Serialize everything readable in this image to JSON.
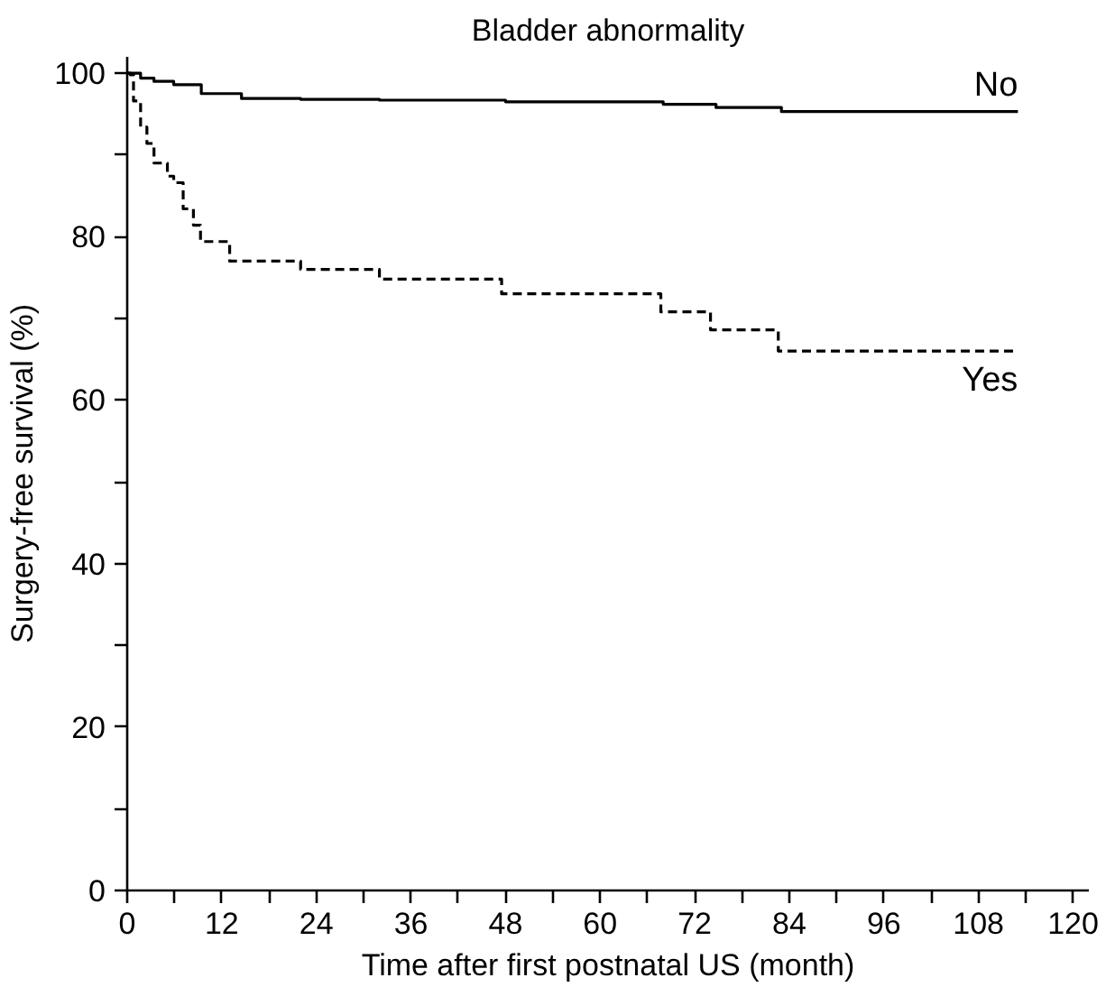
{
  "chart_data": {
    "type": "step",
    "title": "Bladder abnormality",
    "xlabel": "Time after first postnatal US (month)",
    "ylabel": "Surgery-free survival (%)",
    "series": [
      {
        "name": "No",
        "color": "#000000",
        "line_style": "solid",
        "x": [
          0,
          1.7,
          3.4,
          5.9,
          9.4,
          14.5,
          22,
          32,
          48,
          68,
          74.7,
          83,
          113
        ],
        "values": [
          100,
          99.4,
          99,
          98.6,
          97.5,
          96.9,
          96.8,
          96.7,
          96.5,
          96.2,
          95.8,
          95.3,
          95.3
        ]
      },
      {
        "name": "Yes",
        "color": "#000000",
        "line_style": "dashed",
        "x": [
          0,
          0.4,
          0.8,
          1.7,
          2.5,
          3.4,
          5.1,
          5.9,
          7.1,
          8.4,
          9.3,
          13,
          22,
          32,
          47.5,
          67.7,
          74,
          82.6,
          113
        ],
        "values": [
          100,
          99.8,
          96.6,
          93.4,
          91.4,
          89,
          87.4,
          86.6,
          83.4,
          81.4,
          79.4,
          77,
          76,
          74.8,
          73,
          70.8,
          68.6,
          66,
          66
        ]
      }
    ],
    "xlim": [
      0,
      122
    ],
    "ylim": [
      0,
      102
    ],
    "xticks": [
      0,
      {
        "value": 6,
        "label": null
      },
      12,
      {
        "value": 18,
        "label": null
      },
      24,
      {
        "value": 30,
        "label": null
      },
      36,
      {
        "value": 42,
        "label": null
      },
      48,
      {
        "value": 54,
        "label": null
      },
      60,
      {
        "value": 66,
        "label": null
      },
      72,
      {
        "value": 78,
        "label": null
      },
      84,
      {
        "value": 90,
        "label": null
      },
      96,
      {
        "value": 102,
        "label": null
      },
      108,
      {
        "value": 114,
        "label": null
      },
      120
    ],
    "yticks": [
      0,
      {
        "value": 10,
        "label": null
      },
      20,
      {
        "value": 30,
        "label": null
      },
      40,
      {
        "value": 50,
        "label": null
      },
      60,
      {
        "value": 70,
        "label": null
      },
      80,
      {
        "value": 90,
        "label": null
      },
      100
    ],
    "grid": false,
    "marker": "none"
  }
}
